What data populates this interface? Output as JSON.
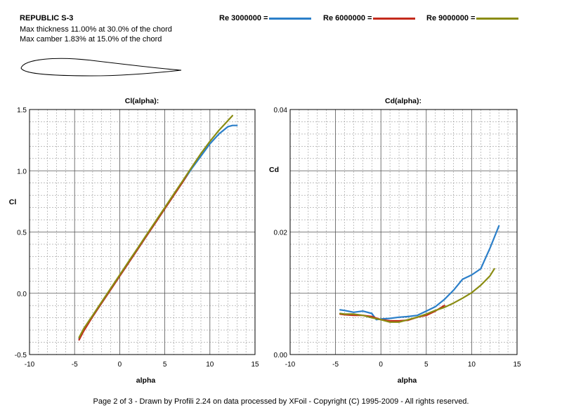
{
  "header": {
    "airfoil_name": "REPUBLIC S-3",
    "thickness_text": "Max thickness 11.00% at 30.0% of the chord",
    "camber_text": "Max camber 1.83% at 15.0% of the chord"
  },
  "legend": [
    {
      "label": "Re 3000000 =",
      "color": "#2b7fc9"
    },
    {
      "label": "Re 6000000 =",
      "color": "#c42a1c"
    },
    {
      "label": "Re 9000000 =",
      "color": "#8a8c12"
    }
  ],
  "footer": "Page 2 of 3   -   Drawn by Profili 2.24 on data processed by  XFoil - Copyright (C) 1995-2009 - All rights reserved.",
  "chart_data": [
    {
      "type": "line",
      "title": "Cl(alpha):",
      "xlabel": "alpha",
      "ylabel": "Cl",
      "xlim": [
        -10,
        15
      ],
      "ylim": [
        -0.5,
        1.5
      ],
      "x_ticks": [
        "-10",
        "-5",
        "0",
        "5",
        "10",
        "15"
      ],
      "y_ticks": [
        "-0.5",
        "0.0",
        "0.5",
        "1.0",
        "1.5"
      ],
      "grid": true,
      "series": [
        {
          "name": "Re 3000000",
          "color": "#2b7fc9",
          "x": [
            -4.5,
            -4,
            -3,
            -2,
            -1,
            0,
            1,
            2,
            3,
            4,
            5,
            6,
            7,
            8,
            9,
            10,
            11,
            12,
            12.5,
            13
          ],
          "y": [
            -0.37,
            -0.3,
            -0.19,
            -0.08,
            0.03,
            0.14,
            0.25,
            0.36,
            0.47,
            0.58,
            0.69,
            0.8,
            0.91,
            1.02,
            1.12,
            1.22,
            1.3,
            1.36,
            1.37,
            1.37
          ]
        },
        {
          "name": "Re 6000000",
          "color": "#c42a1c",
          "x": [
            -4.5,
            -4,
            -3,
            -2,
            -1,
            0,
            1,
            2,
            3,
            4,
            5,
            6,
            7,
            7.5
          ],
          "y": [
            -0.38,
            -0.31,
            -0.19,
            -0.08,
            0.03,
            0.14,
            0.25,
            0.36,
            0.47,
            0.58,
            0.69,
            0.8,
            0.91,
            0.97
          ]
        },
        {
          "name": "Re 9000000",
          "color": "#8a8c12",
          "x": [
            -4.5,
            -4,
            -3,
            -2,
            -1,
            0,
            1,
            2,
            3,
            4,
            5,
            6,
            7,
            8,
            9,
            10,
            11,
            12,
            12.5
          ],
          "y": [
            -0.36,
            -0.29,
            -0.18,
            -0.07,
            0.04,
            0.15,
            0.26,
            0.37,
            0.48,
            0.59,
            0.7,
            0.81,
            0.92,
            1.03,
            1.14,
            1.24,
            1.33,
            1.41,
            1.45
          ]
        }
      ]
    },
    {
      "type": "line",
      "title": "Cd(alpha):",
      "xlabel": "alpha",
      "ylabel": "Cd",
      "xlim": [
        -10,
        15
      ],
      "ylim": [
        0.0,
        0.04
      ],
      "x_ticks": [
        "-10",
        "-5",
        "0",
        "5",
        "10",
        "15"
      ],
      "y_ticks": [
        "0.00",
        "0.02",
        "0.04"
      ],
      "grid": true,
      "series": [
        {
          "name": "Re 3000000",
          "color": "#2b7fc9",
          "x": [
            -4.5,
            -4,
            -3,
            -2,
            -1,
            -0.5,
            0,
            1,
            2,
            3,
            4,
            5,
            6,
            7,
            8,
            9,
            10,
            11,
            12,
            13
          ],
          "y": [
            0.0073,
            0.0072,
            0.0069,
            0.0071,
            0.0067,
            0.0057,
            0.0058,
            0.0059,
            0.0061,
            0.0062,
            0.0064,
            0.0071,
            0.0078,
            0.009,
            0.0105,
            0.0123,
            0.013,
            0.014,
            0.0173,
            0.021
          ]
        },
        {
          "name": "Re 6000000",
          "color": "#c42a1c",
          "x": [
            -4.5,
            -4,
            -3,
            -2,
            -1,
            0,
            1,
            2,
            3,
            4,
            5,
            6,
            7
          ],
          "y": [
            0.0066,
            0.0065,
            0.0064,
            0.0064,
            0.0062,
            0.0057,
            0.0055,
            0.0055,
            0.0056,
            0.0061,
            0.0064,
            0.0071,
            0.008
          ]
        },
        {
          "name": "Re 9000000",
          "color": "#8a8c12",
          "x": [
            -4.5,
            -4,
            -3,
            -2,
            -1,
            0,
            1,
            2,
            3,
            4,
            5,
            6,
            7,
            8,
            9,
            10,
            11,
            12,
            12.5
          ],
          "y": [
            0.0067,
            0.0066,
            0.0066,
            0.0064,
            0.006,
            0.0057,
            0.0053,
            0.0053,
            0.0057,
            0.0061,
            0.0066,
            0.0072,
            0.0077,
            0.0084,
            0.0092,
            0.0101,
            0.0113,
            0.0128,
            0.014
          ]
        }
      ]
    }
  ]
}
